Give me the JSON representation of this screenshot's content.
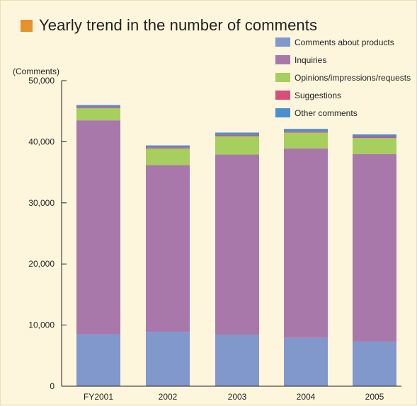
{
  "chart_data": {
    "type": "bar",
    "stacked": true,
    "title": "Yearly trend in the number of comments",
    "ylabel": "(Comments)",
    "xlabel": "",
    "ylim": [
      0,
      50000
    ],
    "yticks": [
      0,
      10000,
      20000,
      30000,
      40000,
      50000
    ],
    "ytick_labels": [
      "0",
      "10,000",
      "20,000",
      "30,000",
      "40,000",
      "50,000"
    ],
    "categories": [
      "FY2001",
      "2002",
      "2003",
      "2004",
      "2005"
    ],
    "series": [
      {
        "name": "Comments about products",
        "color": "#8098cc",
        "values": [
          8500,
          8900,
          8400,
          7900,
          7300
        ]
      },
      {
        "name": "Inquiries",
        "color": "#a878ab",
        "values": [
          35000,
          27300,
          29500,
          31000,
          30700
        ]
      },
      {
        "name": "Opinions/impressions/requests",
        "color": "#a6cf5d",
        "values": [
          2000,
          2700,
          3000,
          2600,
          2600
        ]
      },
      {
        "name": "Suggestions",
        "color": "#d64f78",
        "values": [
          200,
          200,
          200,
          200,
          200
        ]
      },
      {
        "name": "Other comments",
        "color": "#4a8fd0",
        "values": [
          300,
          300,
          400,
          400,
          400
        ]
      }
    ],
    "legend_position": "top-right",
    "grid": false,
    "title_marker_color": "#e8902a"
  }
}
